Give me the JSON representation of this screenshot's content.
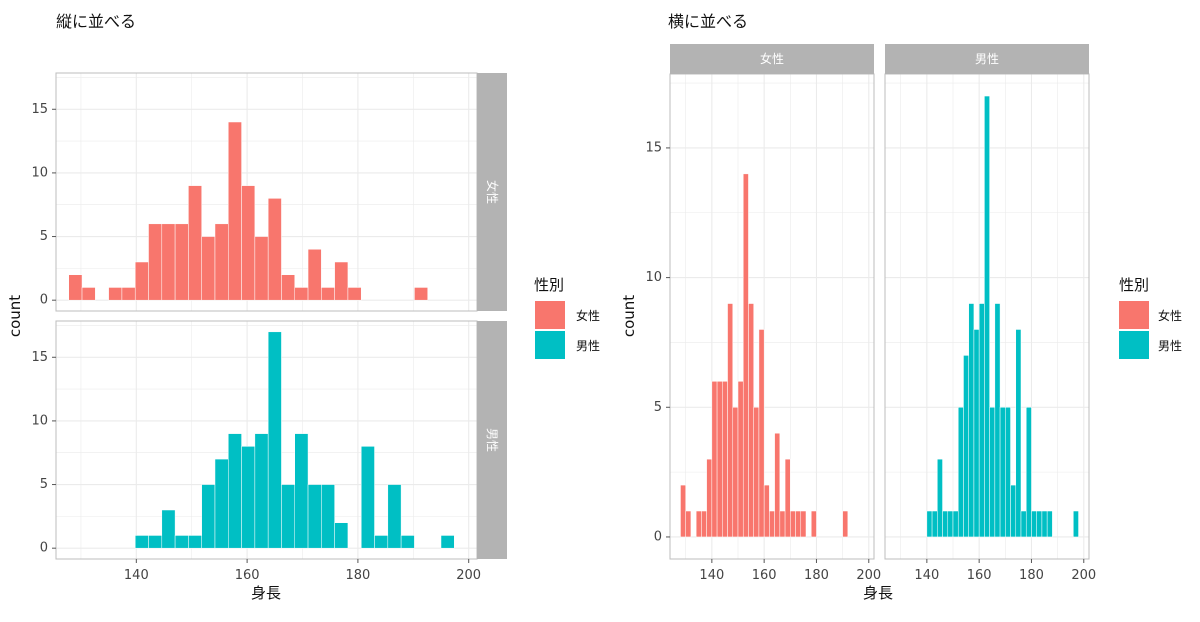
{
  "colors": {
    "female": "#F8766D",
    "male": "#00BFC4",
    "strip": "#B3B3B3",
    "panel_border": "#BDBDBD",
    "grid": "#EBEBEB"
  },
  "titles": {
    "left": "縦に並べる",
    "right": "横に並べる"
  },
  "legend": {
    "title": "性別",
    "items": [
      {
        "label": "女性",
        "color": "#F8766D"
      },
      {
        "label": "男性",
        "color": "#00BFC4"
      }
    ]
  },
  "chart_data": [
    {
      "type": "bar",
      "title": "縦に並べる",
      "facet": "rows",
      "xlabel": "身長",
      "ylabel": "count",
      "xlim": [
        125.5,
        201.5
      ],
      "ylim": [
        -0.85,
        17.85
      ],
      "x_ticks": [
        140,
        160,
        180,
        200
      ],
      "y_ticks": [
        0,
        5,
        10,
        15
      ],
      "grid": true,
      "legend_position": "right",
      "bin_width": 2.4,
      "panels": [
        {
          "strip": "女性",
          "series": "女性",
          "bins": [
            {
              "x": 129.0,
              "count": 2
            },
            {
              "x": 131.4,
              "count": 1
            },
            {
              "x": 136.2,
              "count": 1
            },
            {
              "x": 138.6,
              "count": 1
            },
            {
              "x": 141.0,
              "count": 3
            },
            {
              "x": 143.4,
              "count": 6
            },
            {
              "x": 145.8,
              "count": 6
            },
            {
              "x": 148.2,
              "count": 6
            },
            {
              "x": 150.6,
              "count": 9
            },
            {
              "x": 153.0,
              "count": 5
            },
            {
              "x": 155.4,
              "count": 6
            },
            {
              "x": 157.8,
              "count": 14
            },
            {
              "x": 160.2,
              "count": 9
            },
            {
              "x": 162.6,
              "count": 5
            },
            {
              "x": 165.0,
              "count": 8
            },
            {
              "x": 167.4,
              "count": 2
            },
            {
              "x": 169.8,
              "count": 1
            },
            {
              "x": 172.2,
              "count": 4
            },
            {
              "x": 174.6,
              "count": 1
            },
            {
              "x": 177.0,
              "count": 3
            },
            {
              "x": 179.4,
              "count": 1
            },
            {
              "x": 191.4,
              "count": 1
            }
          ]
        },
        {
          "strip": "男性",
          "series": "男性",
          "bins": [
            {
              "x": 141.0,
              "count": 1
            },
            {
              "x": 143.4,
              "count": 1
            },
            {
              "x": 145.8,
              "count": 3
            },
            {
              "x": 148.2,
              "count": 1
            },
            {
              "x": 150.6,
              "count": 1
            },
            {
              "x": 153.0,
              "count": 5
            },
            {
              "x": 155.4,
              "count": 7
            },
            {
              "x": 157.8,
              "count": 9
            },
            {
              "x": 160.2,
              "count": 8
            },
            {
              "x": 162.6,
              "count": 9
            },
            {
              "x": 165.0,
              "count": 17
            },
            {
              "x": 167.4,
              "count": 5
            },
            {
              "x": 169.8,
              "count": 9
            },
            {
              "x": 172.2,
              "count": 5
            },
            {
              "x": 174.6,
              "count": 5
            },
            {
              "x": 177.0,
              "count": 2
            },
            {
              "x": 181.8,
              "count": 8
            },
            {
              "x": 184.2,
              "count": 1
            },
            {
              "x": 186.6,
              "count": 5
            },
            {
              "x": 189.0,
              "count": 1
            },
            {
              "x": 196.2,
              "count": 1
            }
          ]
        }
      ]
    },
    {
      "type": "bar",
      "title": "横に並べる",
      "facet": "columns",
      "xlabel": "身長",
      "ylabel": "count",
      "xlim": [
        124.0,
        202.0
      ],
      "ylim": [
        -0.85,
        17.85
      ],
      "x_ticks": [
        140,
        160,
        180,
        200
      ],
      "y_ticks": [
        0,
        5,
        10,
        15
      ],
      "grid": true,
      "legend_position": "right",
      "bin_width": 2.0,
      "panels": [
        {
          "strip": "女性",
          "series": "女性",
          "bins": [
            {
              "x": 129,
              "count": 2
            },
            {
              "x": 131,
              "count": 1
            },
            {
              "x": 135,
              "count": 1
            },
            {
              "x": 137,
              "count": 1
            },
            {
              "x": 139,
              "count": 3
            },
            {
              "x": 141,
              "count": 6
            },
            {
              "x": 143,
              "count": 6
            },
            {
              "x": 145,
              "count": 6
            },
            {
              "x": 147,
              "count": 9
            },
            {
              "x": 149,
              "count": 5
            },
            {
              "x": 151,
              "count": 6
            },
            {
              "x": 153,
              "count": 14
            },
            {
              "x": 155,
              "count": 9
            },
            {
              "x": 157,
              "count": 5
            },
            {
              "x": 159,
              "count": 8
            },
            {
              "x": 161,
              "count": 2
            },
            {
              "x": 163,
              "count": 1
            },
            {
              "x": 165,
              "count": 4
            },
            {
              "x": 167,
              "count": 1
            },
            {
              "x": 169,
              "count": 3
            },
            {
              "x": 171,
              "count": 1
            },
            {
              "x": 173,
              "count": 1
            },
            {
              "x": 175,
              "count": 1
            },
            {
              "x": 179,
              "count": 1
            },
            {
              "x": 191,
              "count": 1
            }
          ]
        },
        {
          "strip": "男性",
          "series": "男性",
          "bins": [
            {
              "x": 141,
              "count": 1
            },
            {
              "x": 143,
              "count": 1
            },
            {
              "x": 145,
              "count": 3
            },
            {
              "x": 147,
              "count": 1
            },
            {
              "x": 149,
              "count": 1
            },
            {
              "x": 151,
              "count": 1
            },
            {
              "x": 153,
              "count": 5
            },
            {
              "x": 155,
              "count": 7
            },
            {
              "x": 157,
              "count": 9
            },
            {
              "x": 159,
              "count": 8
            },
            {
              "x": 161,
              "count": 9
            },
            {
              "x": 163,
              "count": 17
            },
            {
              "x": 165,
              "count": 5
            },
            {
              "x": 167,
              "count": 9
            },
            {
              "x": 169,
              "count": 5
            },
            {
              "x": 171,
              "count": 5
            },
            {
              "x": 173,
              "count": 2
            },
            {
              "x": 175,
              "count": 8
            },
            {
              "x": 177,
              "count": 1
            },
            {
              "x": 179,
              "count": 5
            },
            {
              "x": 181,
              "count": 1
            },
            {
              "x": 183,
              "count": 1
            },
            {
              "x": 185,
              "count": 1
            },
            {
              "x": 187,
              "count": 1
            },
            {
              "x": 197,
              "count": 1
            }
          ]
        }
      ]
    }
  ]
}
